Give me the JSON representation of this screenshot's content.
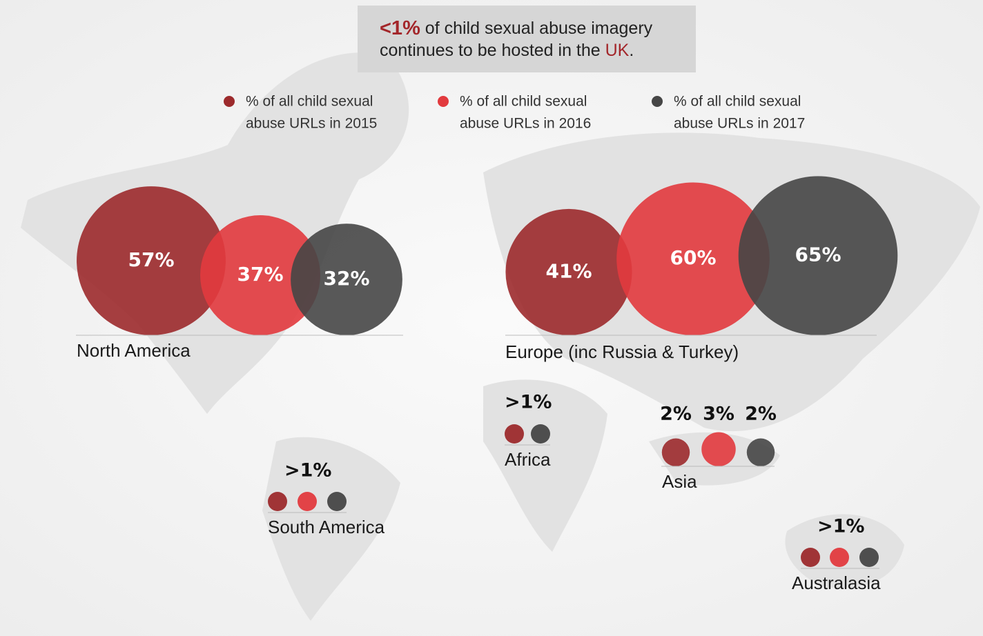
{
  "headline": {
    "highlight": "<1%",
    "line1": " of child sexual abuse imagery",
    "line2": "continues to be hosted in the ",
    "country": "UK",
    "end": "."
  },
  "legend": [
    {
      "line1": "% of all child sexual",
      "line2": "abuse URLs in 2015",
      "color": "#9c2a2c"
    },
    {
      "line1": "% of all child sexual",
      "line2": "abuse URLs in 2016",
      "color": "#e23a3e"
    },
    {
      "line1": "% of all child sexual",
      "line2": "abuse URLs in 2017",
      "color": "#464646"
    }
  ],
  "regions": [
    {
      "name": "North America",
      "values": [
        57,
        37,
        32
      ],
      "value_labels": [
        "57%",
        "37%",
        "32%"
      ]
    },
    {
      "name": "Europe (inc Russia & Turkey)",
      "values": [
        41,
        60,
        65
      ],
      "value_labels": [
        "41%",
        "60%",
        "65%"
      ]
    },
    {
      "name": "Asia",
      "values": [
        2,
        3,
        2
      ],
      "value_labels": [
        "2%",
        "3%",
        "2%"
      ]
    },
    {
      "name": "Africa",
      "label": ">1%"
    },
    {
      "name": "South America",
      "label": ">1%"
    },
    {
      "name": "Australasia",
      "label": ">1%"
    }
  ]
}
